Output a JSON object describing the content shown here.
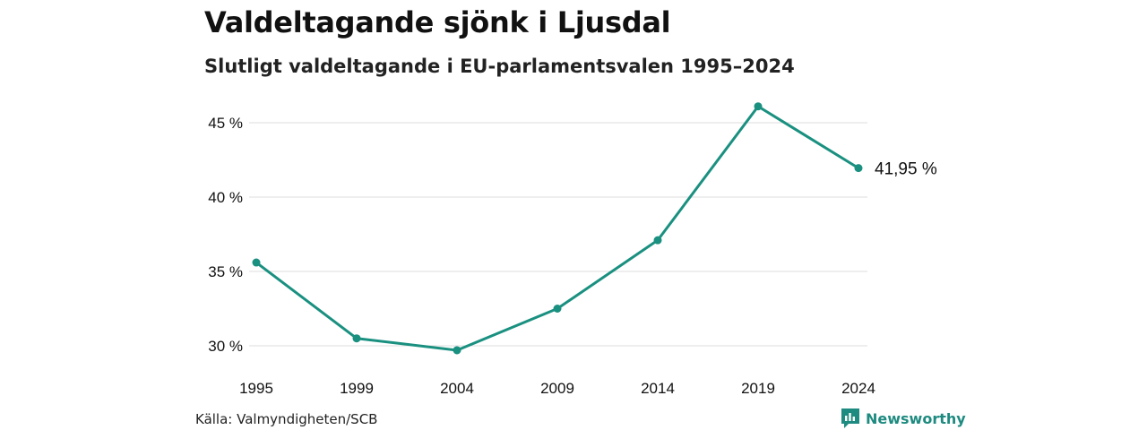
{
  "title": "Valdeltagande sjönk i Ljusdal",
  "subtitle": "Slutligt valdeltagande i EU-parlamentsvalen 1995–2024",
  "source": "Källa: Valmyndigheten/SCB",
  "brand": {
    "name": "Newsworthy",
    "color": "#1e8b80"
  },
  "colors": {
    "line": "#1a9080",
    "grid": "#dddddd",
    "text": "#111111"
  },
  "chart_data": {
    "type": "line",
    "title": "Valdeltagande sjönk i Ljusdal",
    "subtitle": "Slutligt valdeltagande i EU-parlamentsvalen 1995–2024",
    "x": [
      "1995",
      "1999",
      "2004",
      "2009",
      "2014",
      "2019",
      "2024"
    ],
    "series": [
      {
        "values": [
          35.6,
          30.5,
          29.7,
          32.5,
          37.1,
          46.1,
          41.95
        ]
      }
    ],
    "yticks": [
      30,
      35,
      40,
      45
    ],
    "ytick_labels": [
      "30 %",
      "35 %",
      "40 %",
      "45 %"
    ],
    "ylim": [
      30,
      45
    ],
    "end_label": "41,95 %",
    "grid": true,
    "legend": "none"
  }
}
